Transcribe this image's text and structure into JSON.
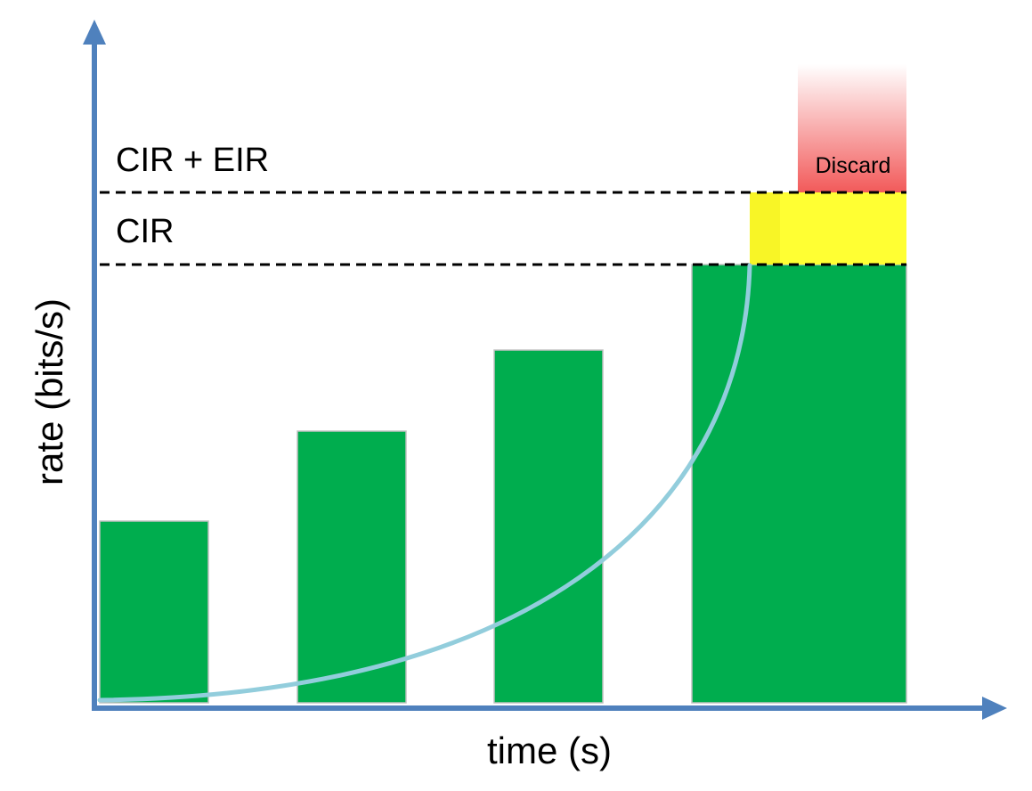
{
  "labels": {
    "y_axis": "rate (bits/s)",
    "x_axis": "time (s)",
    "cir_eir": "CIR + EIR",
    "cir": "CIR",
    "discard": "Discard"
  },
  "colors": {
    "axis": "#4f81bd",
    "bar": "#00ad4e",
    "bar_edge": "#c0c0c0",
    "excess": "#ffff33",
    "discard": "#f25a5a",
    "curve": "#92cddc",
    "dashed": "#000000"
  }
}
